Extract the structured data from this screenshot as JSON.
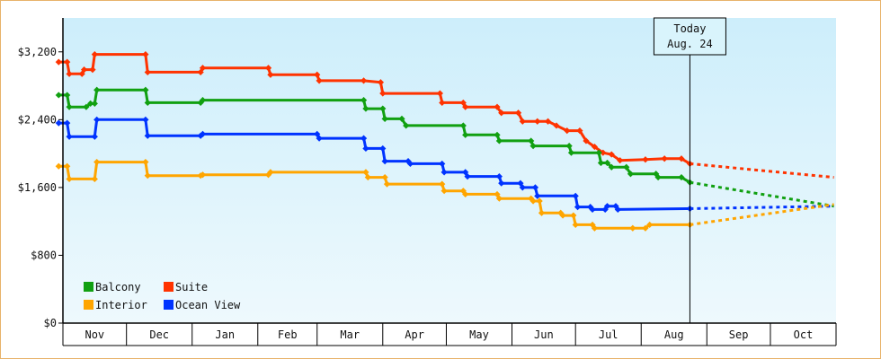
{
  "chart_data": {
    "type": "line",
    "title": "",
    "xlabel": "",
    "ylabel": "",
    "ylim": [
      0,
      3600
    ],
    "y_ticks": [
      {
        "value": 0,
        "label": "$0"
      },
      {
        "value": 800,
        "label": "$800"
      },
      {
        "value": 1600,
        "label": "$1,600"
      },
      {
        "value": 2400,
        "label": "$2,400"
      },
      {
        "value": 3200,
        "label": "$3,200"
      }
    ],
    "x_domain": [
      "2012-11-01",
      "2013-10-31"
    ],
    "months": [
      {
        "label": "Nov",
        "start": "2012-11-01"
      },
      {
        "label": "Dec",
        "start": "2012-12-01"
      },
      {
        "label": "Jan",
        "start": "2013-01-01"
      },
      {
        "label": "Feb",
        "start": "2013-02-01"
      },
      {
        "label": "Mar",
        "start": "2013-03-01"
      },
      {
        "label": "Apr",
        "start": "2013-04-01"
      },
      {
        "label": "May",
        "start": "2013-05-01"
      },
      {
        "label": "Jun",
        "start": "2013-06-01"
      },
      {
        "label": "Jul",
        "start": "2013-07-01"
      },
      {
        "label": "Aug",
        "start": "2013-08-01"
      },
      {
        "label": "Sep",
        "start": "2013-09-01"
      },
      {
        "label": "Oct",
        "start": "2013-10-01"
      }
    ],
    "today": {
      "date": "2013-08-24",
      "line1": "Today",
      "line2": "Aug. 24"
    },
    "legend_placement": "bottom-left",
    "grid": false,
    "background": {
      "top": "#cdeefb",
      "bottom": "#eef9fd"
    },
    "series": [
      {
        "name": "Suite",
        "color": "#ff3300",
        "points": [
          [
            "2012-10-30",
            3080
          ],
          [
            "2012-11-03",
            3080
          ],
          [
            "2012-11-04",
            2940
          ],
          [
            "2012-11-10",
            2940
          ],
          [
            "2012-11-11",
            2990
          ],
          [
            "2012-11-15",
            2990
          ],
          [
            "2012-11-16",
            3170
          ],
          [
            "2012-12-10",
            3170
          ],
          [
            "2012-12-11",
            2960
          ],
          [
            "2013-01-05",
            2960
          ],
          [
            "2013-01-06",
            3010
          ],
          [
            "2013-02-06",
            3010
          ],
          [
            "2013-02-07",
            2930
          ],
          [
            "2013-03-01",
            2930
          ],
          [
            "2013-03-02",
            2860
          ],
          [
            "2013-03-23",
            2860
          ],
          [
            "2013-03-31",
            2840
          ],
          [
            "2013-04-01",
            2710
          ],
          [
            "2013-04-28",
            2710
          ],
          [
            "2013-04-29",
            2600
          ],
          [
            "2013-05-09",
            2600
          ],
          [
            "2013-05-10",
            2550
          ],
          [
            "2013-05-25",
            2550
          ],
          [
            "2013-05-27",
            2480
          ],
          [
            "2013-06-04",
            2480
          ],
          [
            "2013-06-06",
            2380
          ],
          [
            "2013-06-13",
            2380
          ],
          [
            "2013-06-18",
            2380
          ],
          [
            "2013-06-22",
            2330
          ],
          [
            "2013-06-27",
            2270
          ],
          [
            "2013-07-03",
            2270
          ],
          [
            "2013-07-06",
            2150
          ],
          [
            "2013-07-10",
            2080
          ],
          [
            "2013-07-14",
            2010
          ],
          [
            "2013-07-18",
            1990
          ],
          [
            "2013-07-22",
            1920
          ],
          [
            "2013-08-03",
            1930
          ],
          [
            "2013-08-12",
            1940
          ],
          [
            "2013-08-20",
            1940
          ],
          [
            "2013-08-24",
            1880
          ]
        ],
        "forecast": [
          [
            "2013-08-24",
            1880
          ],
          [
            "2013-10-31",
            1720
          ]
        ]
      },
      {
        "name": "Balcony",
        "color": "#11a011",
        "points": [
          [
            "2012-10-30",
            2690
          ],
          [
            "2012-11-03",
            2690
          ],
          [
            "2012-11-04",
            2550
          ],
          [
            "2012-11-12",
            2550
          ],
          [
            "2012-11-14",
            2590
          ],
          [
            "2012-11-16",
            2590
          ],
          [
            "2012-11-17",
            2750
          ],
          [
            "2012-12-10",
            2750
          ],
          [
            "2012-12-11",
            2600
          ],
          [
            "2013-01-05",
            2600
          ],
          [
            "2013-01-06",
            2630
          ],
          [
            "2013-03-23",
            2630
          ],
          [
            "2013-03-24",
            2530
          ],
          [
            "2013-04-01",
            2530
          ],
          [
            "2013-04-02",
            2410
          ],
          [
            "2013-04-10",
            2410
          ],
          [
            "2013-04-12",
            2330
          ],
          [
            "2013-05-09",
            2330
          ],
          [
            "2013-05-10",
            2220
          ],
          [
            "2013-05-25",
            2220
          ],
          [
            "2013-05-26",
            2150
          ],
          [
            "2013-06-10",
            2150
          ],
          [
            "2013-06-11",
            2090
          ],
          [
            "2013-06-28",
            2090
          ],
          [
            "2013-06-29",
            2010
          ],
          [
            "2013-07-12",
            2010
          ],
          [
            "2013-07-13",
            1890
          ],
          [
            "2013-07-16",
            1890
          ],
          [
            "2013-07-18",
            1840
          ],
          [
            "2013-07-25",
            1840
          ],
          [
            "2013-07-27",
            1760
          ],
          [
            "2013-08-08",
            1760
          ],
          [
            "2013-08-09",
            1720
          ],
          [
            "2013-08-20",
            1720
          ],
          [
            "2013-08-24",
            1660
          ]
        ],
        "forecast": [
          [
            "2013-08-24",
            1660
          ],
          [
            "2013-10-31",
            1380
          ]
        ]
      },
      {
        "name": "Ocean View",
        "color": "#0033ff",
        "points": [
          [
            "2012-10-30",
            2360
          ],
          [
            "2012-11-03",
            2360
          ],
          [
            "2012-11-04",
            2200
          ],
          [
            "2012-11-16",
            2200
          ],
          [
            "2012-11-17",
            2400
          ],
          [
            "2012-12-10",
            2400
          ],
          [
            "2012-12-11",
            2210
          ],
          [
            "2013-01-05",
            2210
          ],
          [
            "2013-01-06",
            2230
          ],
          [
            "2013-03-01",
            2230
          ],
          [
            "2013-03-02",
            2180
          ],
          [
            "2013-03-23",
            2180
          ],
          [
            "2013-03-24",
            2060
          ],
          [
            "2013-04-01",
            2060
          ],
          [
            "2013-04-02",
            1910
          ],
          [
            "2013-04-13",
            1910
          ],
          [
            "2013-04-14",
            1880
          ],
          [
            "2013-04-29",
            1880
          ],
          [
            "2013-04-30",
            1780
          ],
          [
            "2013-05-10",
            1780
          ],
          [
            "2013-05-11",
            1730
          ],
          [
            "2013-05-26",
            1730
          ],
          [
            "2013-05-27",
            1650
          ],
          [
            "2013-06-05",
            1650
          ],
          [
            "2013-06-06",
            1600
          ],
          [
            "2013-06-12",
            1600
          ],
          [
            "2013-06-13",
            1500
          ],
          [
            "2013-07-01",
            1500
          ],
          [
            "2013-07-02",
            1370
          ],
          [
            "2013-07-08",
            1370
          ],
          [
            "2013-07-09",
            1340
          ],
          [
            "2013-07-15",
            1340
          ],
          [
            "2013-07-16",
            1380
          ],
          [
            "2013-07-20",
            1380
          ],
          [
            "2013-07-21",
            1340
          ],
          [
            "2013-08-24",
            1350
          ]
        ],
        "forecast": [
          [
            "2013-08-24",
            1350
          ],
          [
            "2013-10-31",
            1380
          ]
        ]
      },
      {
        "name": "Interior",
        "color": "#ffa500",
        "points": [
          [
            "2012-10-30",
            1850
          ],
          [
            "2012-11-03",
            1850
          ],
          [
            "2012-11-04",
            1700
          ],
          [
            "2012-11-16",
            1700
          ],
          [
            "2012-11-17",
            1900
          ],
          [
            "2012-12-10",
            1900
          ],
          [
            "2012-12-11",
            1740
          ],
          [
            "2013-01-05",
            1740
          ],
          [
            "2013-01-06",
            1750
          ],
          [
            "2013-02-06",
            1750
          ],
          [
            "2013-02-07",
            1780
          ],
          [
            "2013-03-24",
            1780
          ],
          [
            "2013-03-25",
            1720
          ],
          [
            "2013-04-02",
            1720
          ],
          [
            "2013-04-03",
            1640
          ],
          [
            "2013-04-29",
            1640
          ],
          [
            "2013-04-30",
            1560
          ],
          [
            "2013-05-09",
            1560
          ],
          [
            "2013-05-10",
            1520
          ],
          [
            "2013-05-25",
            1520
          ],
          [
            "2013-05-26",
            1470
          ],
          [
            "2013-06-10",
            1470
          ],
          [
            "2013-06-11",
            1440
          ],
          [
            "2013-06-14",
            1440
          ],
          [
            "2013-06-15",
            1300
          ],
          [
            "2013-06-24",
            1300
          ],
          [
            "2013-06-25",
            1270
          ],
          [
            "2013-06-30",
            1270
          ],
          [
            "2013-07-01",
            1160
          ],
          [
            "2013-07-09",
            1160
          ],
          [
            "2013-07-10",
            1120
          ],
          [
            "2013-07-28",
            1120
          ],
          [
            "2013-08-03",
            1120
          ],
          [
            "2013-08-05",
            1160
          ],
          [
            "2013-08-24",
            1160
          ]
        ],
        "forecast": [
          [
            "2013-08-24",
            1160
          ],
          [
            "2013-10-31",
            1400
          ]
        ]
      }
    ],
    "legend": [
      {
        "name": "Balcony",
        "color": "#11a011"
      },
      {
        "name": "Suite",
        "color": "#ff3300"
      },
      {
        "name": "Interior",
        "color": "#ffa500"
      },
      {
        "name": "Ocean View",
        "color": "#0033ff"
      }
    ]
  }
}
